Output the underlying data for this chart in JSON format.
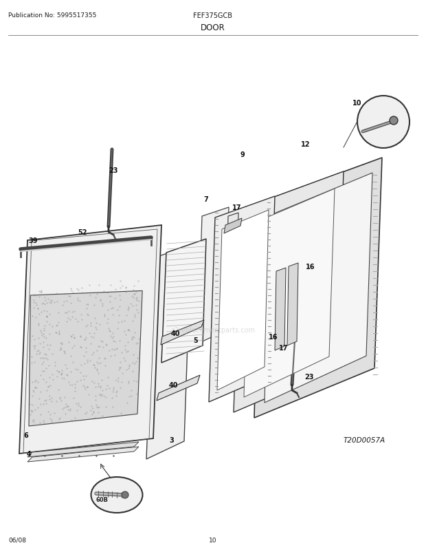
{
  "title": "DOOR",
  "model": "FEF375GCB",
  "publication": "Publication No: 5995517355",
  "date": "06/08",
  "page": "10",
  "diagram_id": "T20D0057A",
  "bg_color": "#ffffff",
  "text_color": "#1a1a1a",
  "fig_width": 6.2,
  "fig_height": 8.03,
  "dpi": 100,
  "watermark": "a2replacementparts.com"
}
